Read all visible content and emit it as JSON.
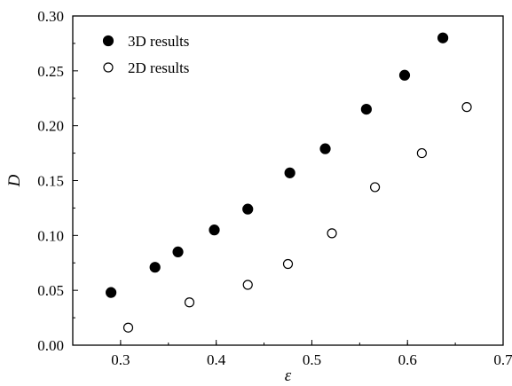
{
  "chart_data": {
    "type": "scatter",
    "title": "",
    "xlabel": "ε",
    "ylabel": "D",
    "xlim": [
      0.25,
      0.7
    ],
    "ylim": [
      0.0,
      0.3
    ],
    "xticks": [
      "0.3",
      "0.4",
      "0.5",
      "0.6",
      "0.7"
    ],
    "yticks": [
      "0.00",
      "0.05",
      "0.10",
      "0.15",
      "0.20",
      "0.25",
      "0.30"
    ],
    "grid": false,
    "legend_position": "top-left",
    "series": [
      {
        "name": "3D results",
        "marker": "filled-circle",
        "color": "#000000",
        "x": [
          0.29,
          0.336,
          0.36,
          0.398,
          0.433,
          0.477,
          0.514,
          0.557,
          0.597,
          0.637
        ],
        "y": [
          0.048,
          0.071,
          0.085,
          0.105,
          0.124,
          0.157,
          0.179,
          0.215,
          0.246,
          0.28
        ]
      },
      {
        "name": "2D results",
        "marker": "open-circle",
        "color": "#000000",
        "x": [
          0.308,
          0.372,
          0.433,
          0.475,
          0.521,
          0.566,
          0.615,
          0.662
        ],
        "y": [
          0.016,
          0.039,
          0.055,
          0.074,
          0.102,
          0.144,
          0.175,
          0.217
        ]
      }
    ]
  }
}
